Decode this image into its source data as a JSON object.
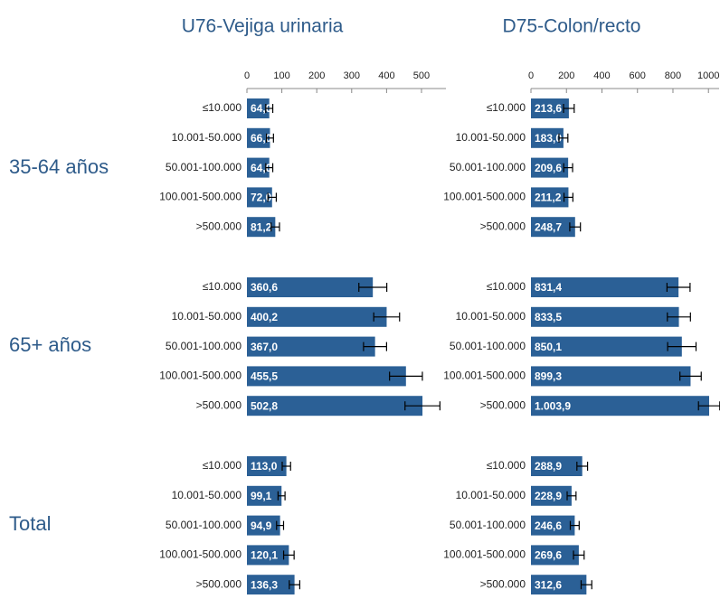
{
  "groups": [
    "35-64 años",
    "65+ años",
    "Total"
  ],
  "chart_data": [
    {
      "type": "bar",
      "title": "U76-Vejiga urinaria",
      "categories": [
        "≤10.000",
        "10.001-50.000",
        "50.001-100.000",
        "100.001-500.000",
        ">500.000"
      ],
      "xlim": [
        0,
        570
      ],
      "xticks": [
        0,
        100,
        200,
        300,
        400,
        500
      ],
      "color": "#2b6096",
      "series": [
        {
          "values": [
            64.0,
            66.0,
            64.0,
            72.0,
            81.2
          ],
          "value_labels": [
            "64,0",
            "66,0",
            "64,0",
            "72,0",
            "81,2"
          ],
          "errors": [
            10,
            10,
            10,
            12,
            12
          ]
        },
        {
          "values": [
            360.6,
            400.2,
            367.0,
            455.5,
            502.8
          ],
          "value_labels": [
            "360,6",
            "400,2",
            "367,0",
            "455,5",
            "502,8"
          ],
          "errors": [
            40,
            37,
            33,
            47,
            50
          ]
        },
        {
          "values": [
            113.0,
            99.1,
            94.9,
            120.1,
            136.3
          ],
          "value_labels": [
            "113,0",
            "99,1",
            "94,9",
            "120,1",
            "136,3"
          ],
          "errors": [
            12,
            10,
            10,
            15,
            15
          ]
        }
      ]
    },
    {
      "type": "bar",
      "title": "D75-Colon/recto",
      "categories": [
        "≤10.000",
        "10.001-50.000",
        "50.001-100.000",
        "100.001-500.000",
        ">500.000"
      ],
      "xlim": [
        0,
        1060
      ],
      "xticks": [
        0,
        200,
        400,
        600,
        800,
        1000
      ],
      "color": "#2b6096",
      "series": [
        {
          "values": [
            213.6,
            183.0,
            209.6,
            211.2,
            248.7
          ],
          "value_labels": [
            "213,6",
            "183,0",
            "209,6",
            "211,2",
            "248,7"
          ],
          "errors": [
            30,
            25,
            25,
            25,
            30
          ]
        },
        {
          "values": [
            831.4,
            833.5,
            850.1,
            899.3,
            1003.9
          ],
          "value_labels": [
            "831,4",
            "833,5",
            "850,1",
            "899,3",
            "1.003,9"
          ],
          "errors": [
            65,
            65,
            80,
            60,
            60
          ]
        },
        {
          "values": [
            288.9,
            228.9,
            246.6,
            269.6,
            312.6
          ],
          "value_labels": [
            "288,9",
            "228,9",
            "246,6",
            "269,6",
            "312,6"
          ],
          "errors": [
            30,
            25,
            25,
            30,
            30
          ]
        }
      ]
    }
  ]
}
